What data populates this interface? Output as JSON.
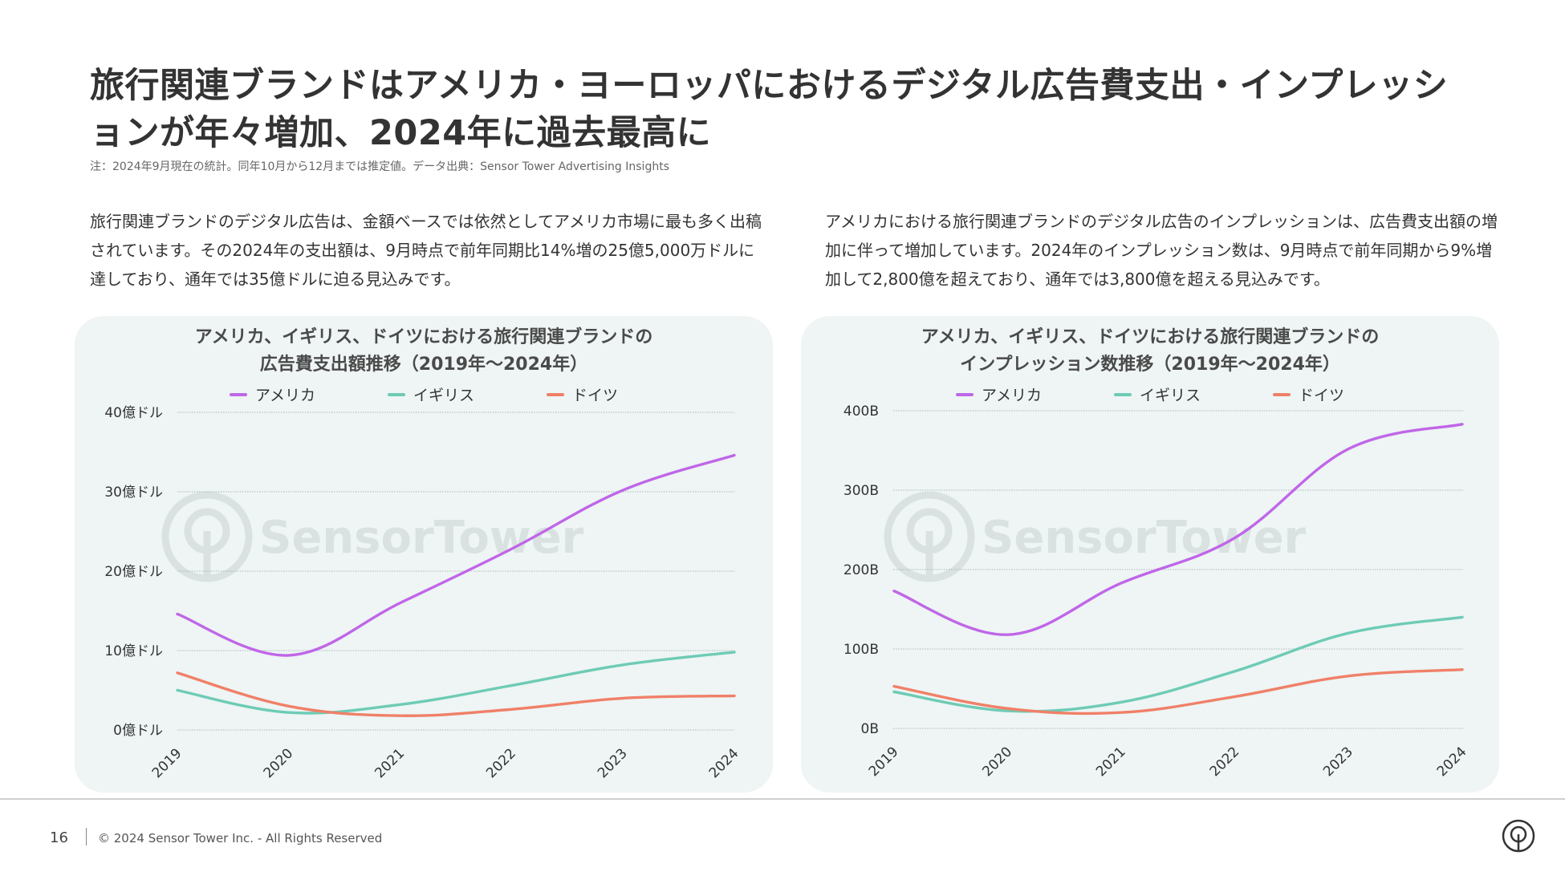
{
  "title": "旅行関連ブランドはアメリカ・ヨーロッパにおけるデジタル広告費支出・インプレッションが年々増加、2024年に過去最高に",
  "note": "注：2024年9月現在の統計。同年10月から12月までは推定値。データ出典：Sensor Tower Advertising Insights",
  "desc_left": "旅行関連ブランドのデジタル広告は、金額ベースでは依然としてアメリカ市場に最も多く出稿されています。その2024年の支出額は、9月時点で前年同期比14%増の25億5,000万ドルに達しており、通年では35億ドルに迫る見込みです。",
  "desc_right": "アメリカにおける旅行関連ブランドのデジタル広告のインプレッションは、広告費支出額の増加に伴って増加しています。2024年のインプレッション数は、9月時点で前年同期から9%増加して2,800億を超えており、通年では3,800億を超える見込みです。",
  "watermark": "SensorTower",
  "legend": [
    {
      "name": "アメリカ",
      "color": "#c066e8"
    },
    {
      "name": "イギリス",
      "color": "#6ecbb6"
    },
    {
      "name": "ドイツ",
      "color": "#f08068"
    }
  ],
  "chart_data": [
    {
      "type": "line",
      "title_line1": "アメリカ、イギリス、ドイツにおける旅行関連ブランドの",
      "title_line2": "広告費支出額推移（2019年〜2024年）",
      "x": [
        "2019",
        "2020",
        "2021",
        "2022",
        "2023",
        "2024"
      ],
      "ylim": [
        0,
        40
      ],
      "yticks": [
        0,
        10,
        20,
        30,
        40
      ],
      "ytick_labels": [
        "0億ドル",
        "10億ドル",
        "20億ドル",
        "30億ドル",
        "40億ドル"
      ],
      "series": [
        {
          "name": "アメリカ",
          "color": "#c066e8",
          "values": [
            14.6,
            9.4,
            16.0,
            22.8,
            30.2,
            34.6
          ]
        },
        {
          "name": "イギリス",
          "color": "#6ecbb6",
          "values": [
            5.0,
            2.2,
            3.2,
            5.6,
            8.2,
            9.8
          ]
        },
        {
          "name": "ドイツ",
          "color": "#f08068",
          "values": [
            7.2,
            3.0,
            1.8,
            2.6,
            4.0,
            4.3
          ]
        }
      ]
    },
    {
      "type": "line",
      "title_line1": "アメリカ、イギリス、ドイツにおける旅行関連ブランドの",
      "title_line2": "インプレッション数推移（2019年〜2024年）",
      "x": [
        "2019",
        "2020",
        "2021",
        "2022",
        "2023",
        "2024"
      ],
      "ylim": [
        0,
        400
      ],
      "yticks": [
        0,
        100,
        200,
        300,
        400
      ],
      "ytick_labels": [
        "0B",
        "100B",
        "200B",
        "300B",
        "400B"
      ],
      "series": [
        {
          "name": "アメリカ",
          "color": "#c066e8",
          "values": [
            173,
            118,
            183,
            240,
            352,
            383
          ]
        },
        {
          "name": "イギリス",
          "color": "#6ecbb6",
          "values": [
            46,
            22,
            33,
            72,
            120,
            140
          ]
        },
        {
          "name": "ドイツ",
          "color": "#f08068",
          "values": [
            53,
            25,
            20,
            40,
            66,
            74
          ]
        }
      ]
    }
  ],
  "footer": {
    "page": "16",
    "copyright": "© 2024 Sensor Tower Inc. - All Rights Reserved"
  }
}
